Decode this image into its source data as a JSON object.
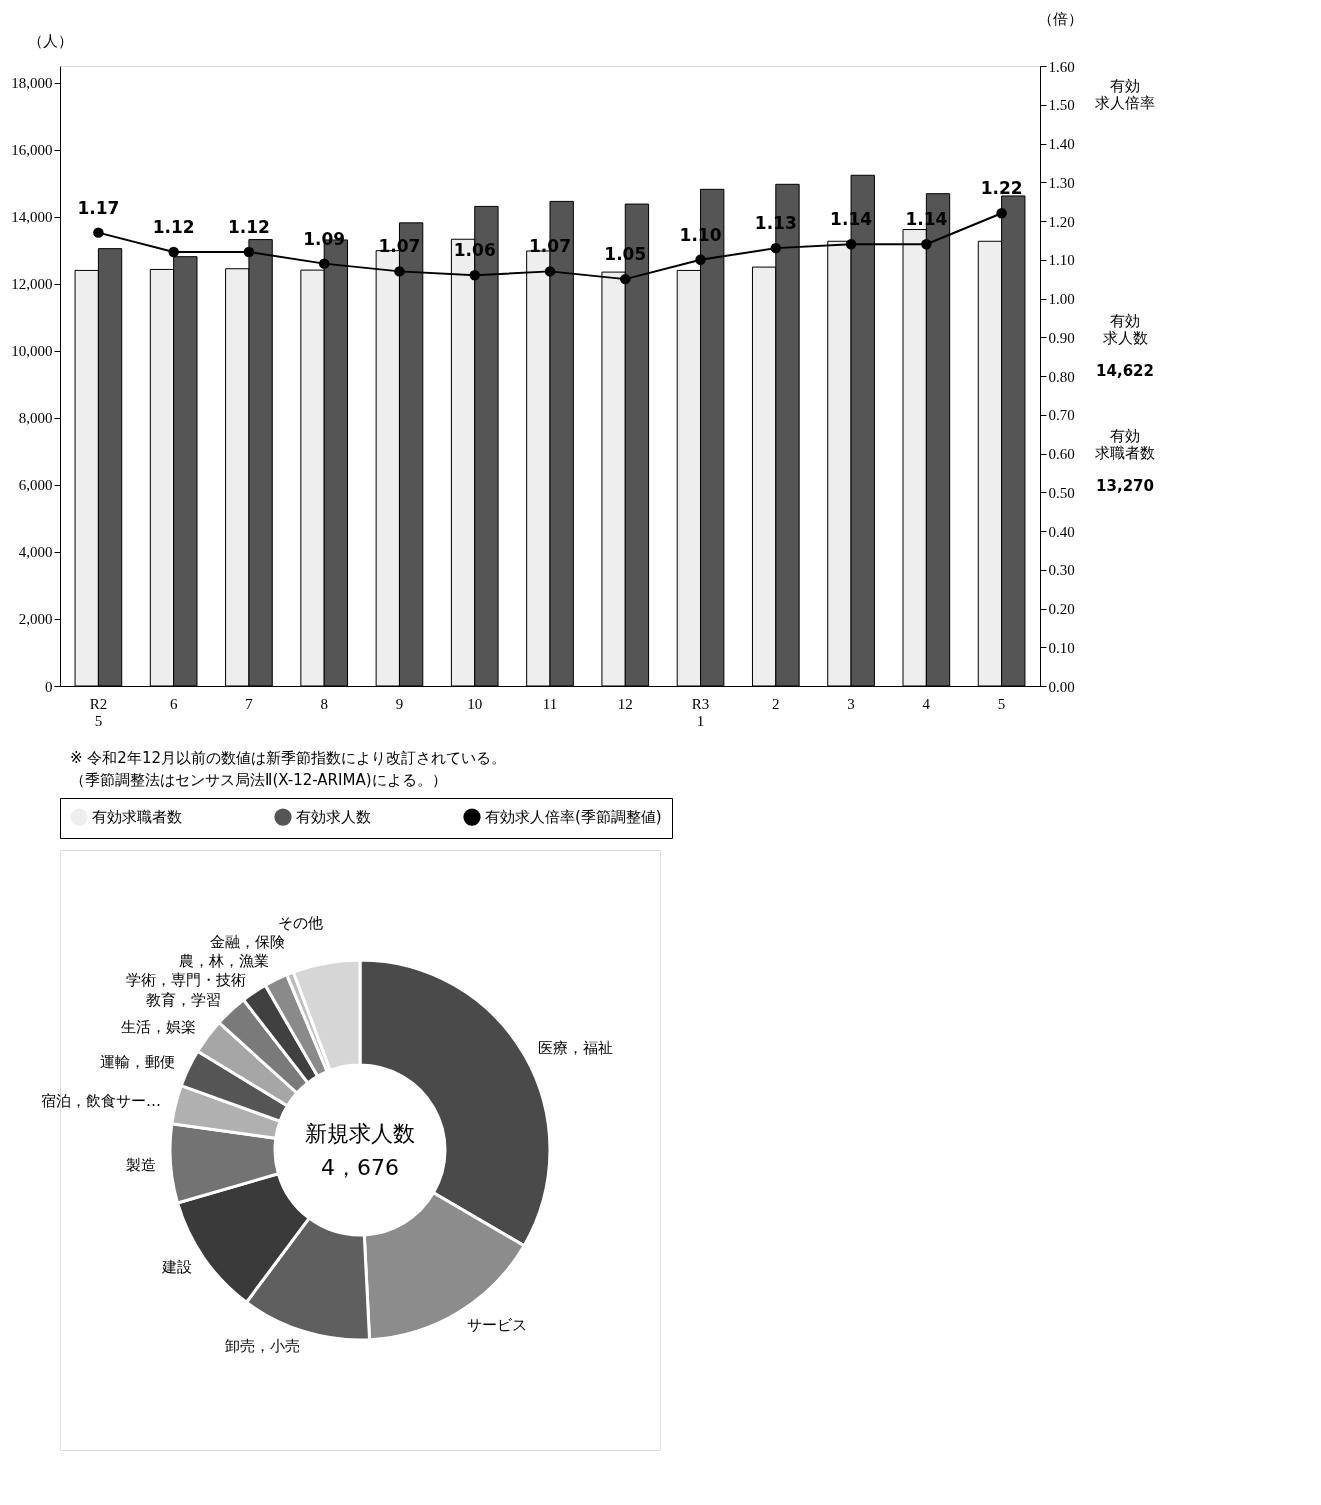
{
  "chart_data": [
    {
      "type": "bar",
      "categories": [
        "R2\n5",
        "6",
        "7",
        "8",
        "9",
        "10",
        "11",
        "12",
        "R3\n1",
        "2",
        "3",
        "4",
        "5"
      ],
      "series": [
        {
          "name": "有効求職者数",
          "color": "#eeeeee",
          "values": [
            12400,
            12430,
            12450,
            12410,
            12990,
            13330,
            12980,
            12350,
            12400,
            12500,
            13270,
            13620,
            13270
          ]
        },
        {
          "name": "有効求人数",
          "color": "#555555",
          "values": [
            13050,
            12810,
            13320,
            13310,
            13820,
            14310,
            14460,
            14380,
            14820,
            14970,
            15240,
            14690,
            14622
          ]
        },
        {
          "name": "有効求人倍率(季節調整値)",
          "type": "line",
          "axis": "y2",
          "color": "#000000",
          "marker": "circle",
          "line_style": "solid",
          "values": [
            1.17,
            1.12,
            1.12,
            1.09,
            1.07,
            1.06,
            1.07,
            1.05,
            1.1,
            1.13,
            1.14,
            1.14,
            1.22
          ],
          "value_labels": [
            "1.17",
            "1.12",
            "1.12",
            "1.09",
            "1.07",
            "1.06",
            "1.07",
            "1.05",
            "1.10",
            "1.13",
            "1.14",
            "1.14",
            "1.22"
          ]
        }
      ],
      "ylabel": "（人）",
      "y2label": "（倍）",
      "ylim": [
        0,
        18500
      ],
      "yticks": [
        {
          "value": 0,
          "label": "0"
        },
        {
          "value": 2000,
          "label": "2,000"
        },
        {
          "value": 4000,
          "label": "4,000"
        },
        {
          "value": 6000,
          "label": "6,000"
        },
        {
          "value": 8000,
          "label": "8,000"
        },
        {
          "value": 10000,
          "label": "10,000"
        },
        {
          "value": 12000,
          "label": "12,000"
        },
        {
          "value": 14000,
          "label": "14,000"
        },
        {
          "value": 16000,
          "label": "16,000"
        },
        {
          "value": 18000,
          "label": "18,000"
        }
      ],
      "y2lim": [
        0,
        1.6
      ],
      "y2ticks": [
        {
          "value": 0,
          "label": "0.00"
        },
        {
          "value": 0.1,
          "label": "0.10"
        },
        {
          "value": 0.2,
          "label": "0.20"
        },
        {
          "value": 0.3,
          "label": "0.30"
        },
        {
          "value": 0.4,
          "label": "0.40"
        },
        {
          "value": 0.5,
          "label": "0.50"
        },
        {
          "value": 0.6,
          "label": "0.60"
        },
        {
          "value": 0.7,
          "label": "0.70"
        },
        {
          "value": 0.8,
          "label": "0.80"
        },
        {
          "value": 0.9,
          "label": "0.90"
        },
        {
          "value": 1.0,
          "label": "1.00"
        },
        {
          "value": 1.1,
          "label": "1.10"
        },
        {
          "value": 1.2,
          "label": "1.20"
        },
        {
          "value": 1.3,
          "label": "1.30"
        },
        {
          "value": 1.4,
          "label": "1.40"
        },
        {
          "value": 1.5,
          "label": "1.50"
        },
        {
          "value": 1.6,
          "label": "1.60"
        }
      ],
      "grid": false,
      "legend": "bottom",
      "annotations": [
        "有効求人倍率",
        "有効求人数",
        "14,622",
        "有効求職者数",
        "13,270",
        "※ 令和2年12月以前の数値は新季節指数により改訂されている。（季節調整法はセンサス局法Ⅱ(X-12-ARIMA)による。）"
      ]
    },
    {
      "type": "donut",
      "title": "新規求人数",
      "annotations": [
        "4，676"
      ],
      "categories": [
        "医療，福祉",
        "サービス",
        "卸売，小売",
        "建設",
        "製造",
        "宿泊，飲食サー…",
        "運輸，郵便",
        "生活，娯楽",
        "教育，学習",
        "学術，専門・技術",
        "農，林，漁業",
        "金融，保険",
        "その他"
      ],
      "values": [
        33.4,
        15.8,
        11.0,
        10.3,
        6.7,
        3.3,
        3.2,
        3.0,
        2.8,
        2.2,
        2.0,
        0.6,
        5.7
      ],
      "colors": [
        "#4a4a4a",
        "#8c8c8c",
        "#5f5f5f",
        "#3a3a3a",
        "#737373",
        "#b0b0b0",
        "#555555",
        "#a6a6a6",
        "#7a7a7a",
        "#404040",
        "#8a8a8a",
        "#bdbdbd",
        "#d6d6d6"
      ],
      "legend": false
    }
  ]
}
